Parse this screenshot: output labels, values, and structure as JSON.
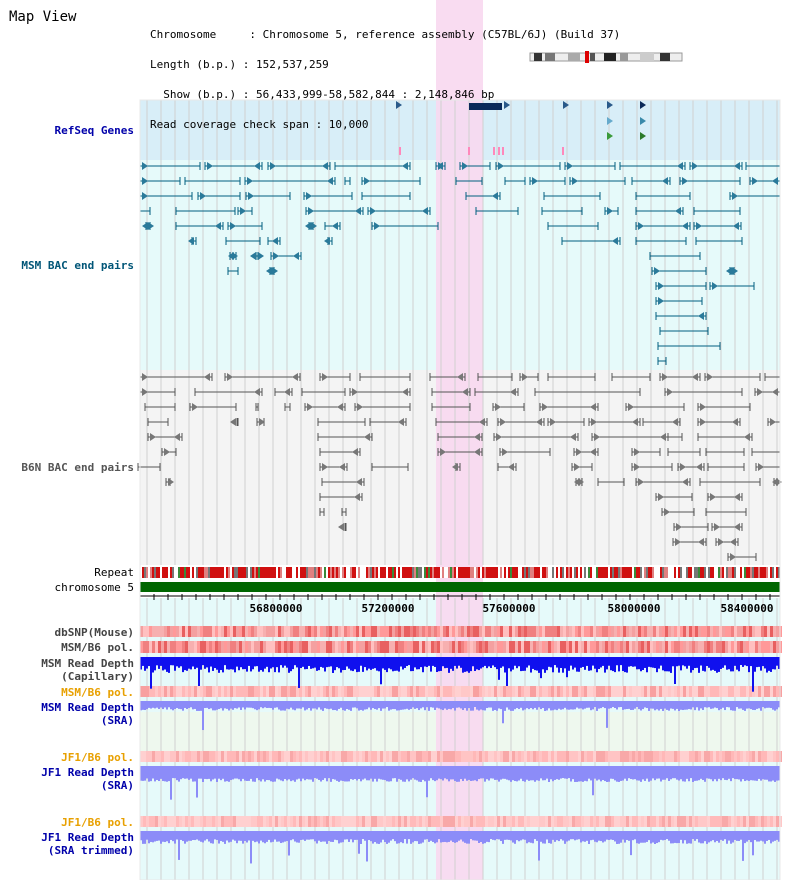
{
  "title": "Map View",
  "info": {
    "line1": "Chromosome     : Chromosome 5, reference assembly (C57BL/6J) (Build 37)",
    "line2": "Length (b.p.) : 152,537,259",
    "line3": "  Show (b.p.) : 56,433,999-58,582,844 : 2,148,846 bp",
    "line4": "Read coverage check span : 10,000"
  },
  "tracks": {
    "refseq": "RefSeq Genes",
    "msm_bac": "MSM BAC end pairs",
    "b6n_bac": "B6N BAC end pairs",
    "repeat": "Repeat",
    "chromosome": "chromosome 5",
    "dbsnp": "dbSNP(Mouse)",
    "msm_b6_pol_cap": "MSM/B6 pol.",
    "msm_depth_cap": "MSM Read Depth\n(Capillary)",
    "msm_b6_pol_sra": "MSM/B6 pol.",
    "msm_depth_sra": "MSM Read Depth\n(SRA)",
    "jf1_b6_pol": "JF1/B6 pol.",
    "jf1_depth": "JF1 Read Depth\n(SRA)",
    "jf1_b6_pol_trim": "JF1/B6 pol.",
    "jf1_depth_trim": "JF1 Read Depth\n(SRA trimmed)"
  },
  "axis_ticks": [
    "56800000",
    "57200000",
    "57600000",
    "58000000",
    "58400000"
  ],
  "colors": {
    "refseq_bg": "#d8eef8",
    "msm_bg": "#e6fafa",
    "b6n_bg": "#f4f4f4",
    "highlight": "#f8d8f0",
    "chromosome_bar": "#006600",
    "depth_dark": "#1010ee",
    "depth_light": "#8c8cf8",
    "pol_orange": "#e8a000",
    "label_blue": "#0000aa",
    "label_teal": "#005577"
  }
}
